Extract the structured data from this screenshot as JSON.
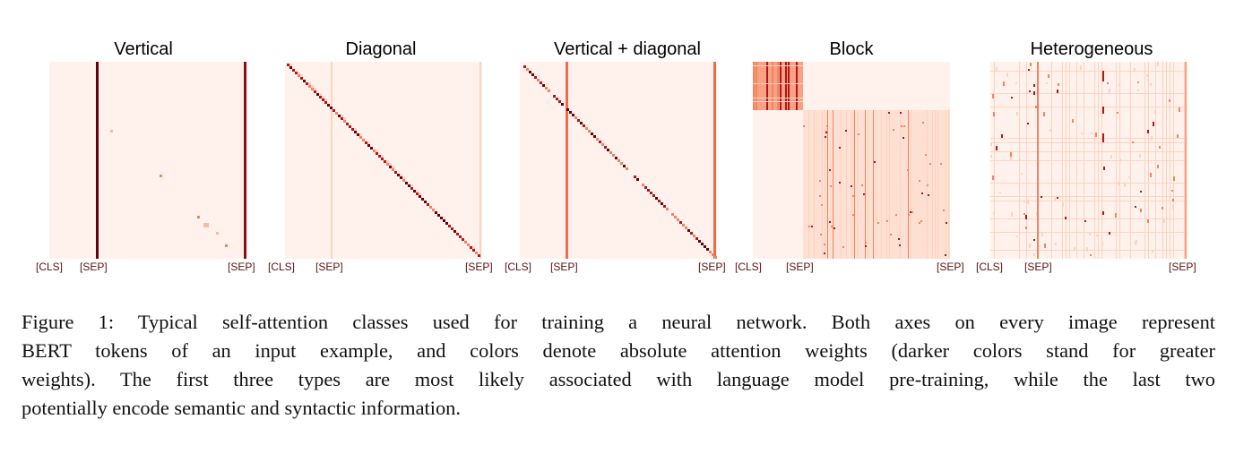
{
  "figure": {
    "panels": [
      {
        "id": "vertical",
        "title": "Vertical"
      },
      {
        "id": "diagonal",
        "title": "Diagonal"
      },
      {
        "id": "vertical_diagonal",
        "title": "Vertical + diagonal"
      },
      {
        "id": "block",
        "title": "Block"
      },
      {
        "id": "heterogeneous",
        "title": "Heterogeneous"
      }
    ],
    "tick_labels": {
      "cls": "[CLS]",
      "sep": "[SEP]"
    },
    "colors": {
      "background": "#fff2ec",
      "light": "#fcd3c1",
      "medium": "#f5815f",
      "dark": "#b3141b",
      "darkest": "#67000d"
    }
  },
  "caption": {
    "lines": [
      "Figure 1: Typical self-attention classes used for training a neural network. Both axes on every image represent",
      "BERT tokens of an input example, and colors denote absolute attention weights (darker colors stand for greater",
      "weights). The first three types are most likely associated with language model pre-training, while the last two",
      "potentially encode semantic and syntactic information."
    ]
  }
}
